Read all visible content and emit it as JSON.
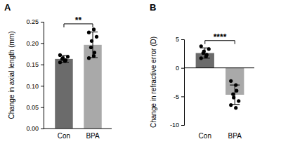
{
  "chart_data": [
    {
      "type": "bar",
      "title": "A",
      "y_label": "Change in axial length (mm)",
      "categories": [
        "Con",
        "BPA"
      ],
      "values": [
        0.163,
        0.196
      ],
      "errors": [
        0.008,
        0.03
      ],
      "points": [
        [
          0.155,
          0.158,
          0.16,
          0.163,
          0.165,
          0.168,
          0.172
        ],
        [
          0.165,
          0.17,
          0.178,
          0.19,
          0.205,
          0.215,
          0.225,
          0.232
        ]
      ],
      "colors": [
        "#6b6b6b",
        "#a9a9a9"
      ],
      "ylim": [
        0,
        0.25
      ],
      "yticks": [
        {
          "value": 0,
          "label": "0.00"
        },
        {
          "value": 0.05,
          "label": "0.05"
        },
        {
          "value": 0.1,
          "label": "0.10"
        },
        {
          "value": 0.15,
          "label": "0.15"
        },
        {
          "value": 0.2,
          "label": "0.20"
        },
        {
          "value": 0.25,
          "label": "0.25"
        }
      ],
      "annotations": [
        {
          "text": "**"
        }
      ]
    },
    {
      "type": "bar",
      "title": "B",
      "y_label": "Change in refractive error (D)",
      "categories": [
        "Con",
        "BPA"
      ],
      "values": [
        2.6,
        -4.7
      ],
      "errors": [
        0.9,
        1.7
      ],
      "points": [
        [
          1.7,
          2.0,
          2.3,
          2.6,
          2.9,
          3.3,
          3.8
        ],
        [
          -2.3,
          -3.0,
          -4.0,
          -4.6,
          -5.2,
          -5.8,
          -6.5,
          -7.0
        ]
      ],
      "colors": [
        "#6b6b6b",
        "#a9a9a9"
      ],
      "ylim": [
        -10,
        5
      ],
      "yticks": [
        -10,
        -5,
        0,
        5
      ],
      "annotations": [
        {
          "text": "****"
        }
      ]
    }
  ]
}
